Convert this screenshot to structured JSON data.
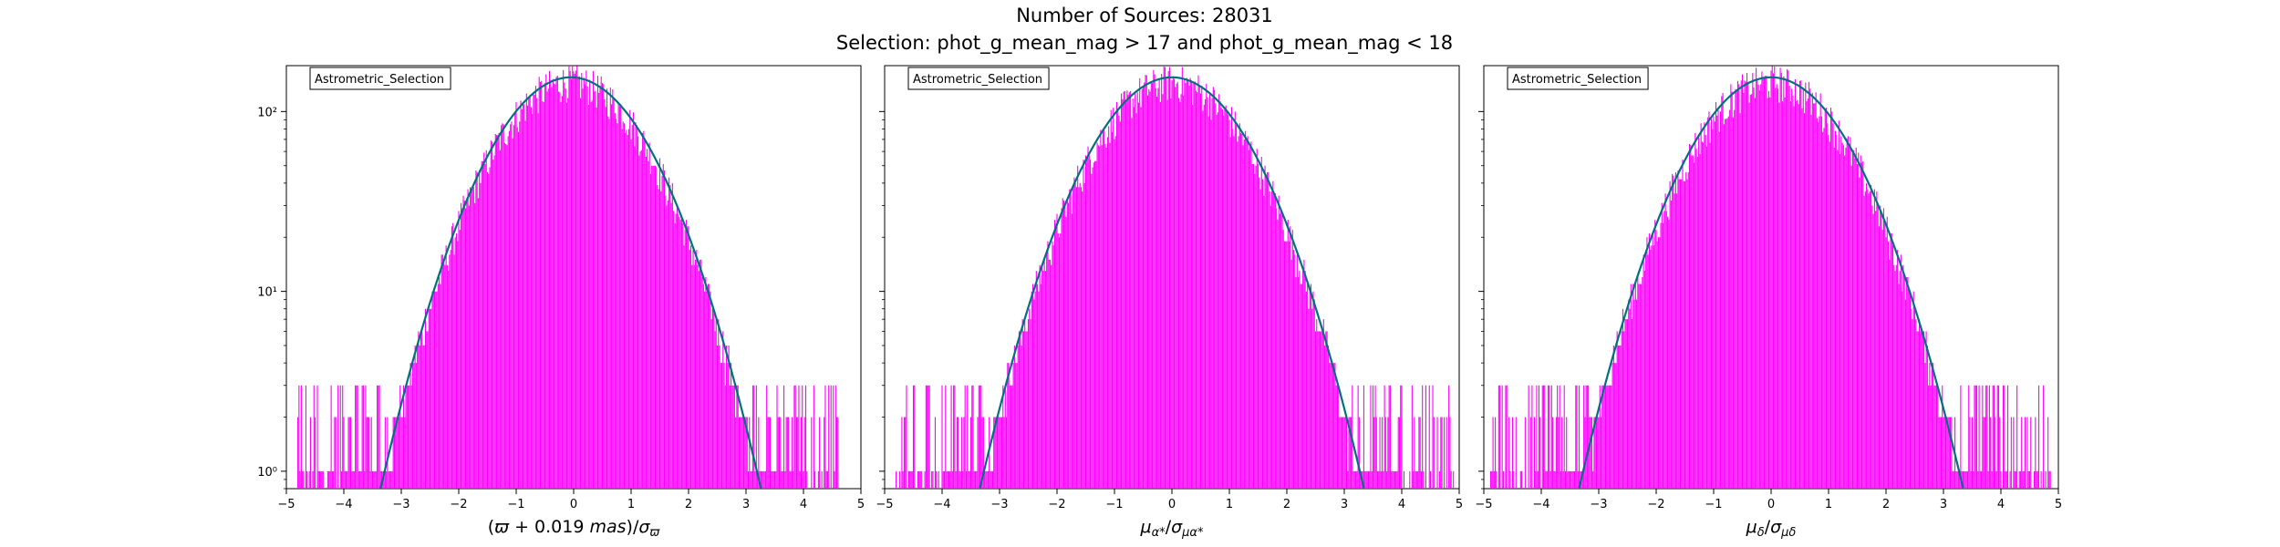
{
  "figure": {
    "title": "Number of Sources: 28031",
    "subtitle": "Selection: phot_g_mean_mag > 17 and phot_g_mean_mag < 18",
    "fit_color": "#007080",
    "hist_color": "#ff00ff"
  },
  "chart_data": [
    {
      "type": "histogram",
      "legend": "Astrometric_Selection",
      "legend_placement": "top-left",
      "xlabel": "(ϖ + 0.019 mas)/σϖ",
      "xlim": [
        -5,
        5
      ],
      "ylim": [
        0.8,
        180
      ],
      "yscale": "log",
      "xticks": [
        "−5",
        "−4",
        "−3",
        "−2",
        "−1",
        "0",
        "1",
        "2",
        "3",
        "4",
        "5"
      ],
      "yticks": [
        {
          "value": 1,
          "label": "10⁰"
        },
        {
          "value": 10,
          "label": "10¹"
        },
        {
          "value": 100,
          "label": "10²"
        }
      ],
      "fit": {
        "peak": 155,
        "mean": -0.05,
        "sigma": 1.02
      },
      "hist_range": [
        -4.8,
        4.6
      ],
      "grid": false
    },
    {
      "type": "histogram",
      "legend": "Astrometric_Selection",
      "legend_placement": "top-left",
      "xlabel": "μα*/σμα*",
      "xlim": [
        -5,
        5
      ],
      "ylim": [
        0.8,
        180
      ],
      "yscale": "log",
      "xticks": [
        "−5",
        "−4",
        "−3",
        "−2",
        "−1",
        "0",
        "1",
        "2",
        "3",
        "4",
        "5"
      ],
      "yticks": [
        {
          "value": 1,
          "label": ""
        },
        {
          "value": 10,
          "label": ""
        },
        {
          "value": 100,
          "label": ""
        }
      ],
      "fit": {
        "peak": 155,
        "mean": 0.0,
        "sigma": 1.03
      },
      "hist_range": [
        -4.8,
        4.9
      ],
      "grid": false
    },
    {
      "type": "histogram",
      "legend": "Astrometric_Selection",
      "legend_placement": "top-left",
      "xlabel": "μδ/σμδ",
      "xlim": [
        -5,
        5
      ],
      "ylim": [
        0.8,
        180
      ],
      "yscale": "log",
      "xticks": [
        "−5",
        "−4",
        "−3",
        "−2",
        "−1",
        "0",
        "1",
        "2",
        "3",
        "4",
        "5"
      ],
      "yticks": [
        {
          "value": 1,
          "label": ""
        },
        {
          "value": 10,
          "label": ""
        },
        {
          "value": 100,
          "label": ""
        }
      ],
      "fit": {
        "peak": 155,
        "mean": 0.0,
        "sigma": 1.03
      },
      "hist_range": [
        -4.9,
        4.9
      ],
      "grid": false
    }
  ]
}
